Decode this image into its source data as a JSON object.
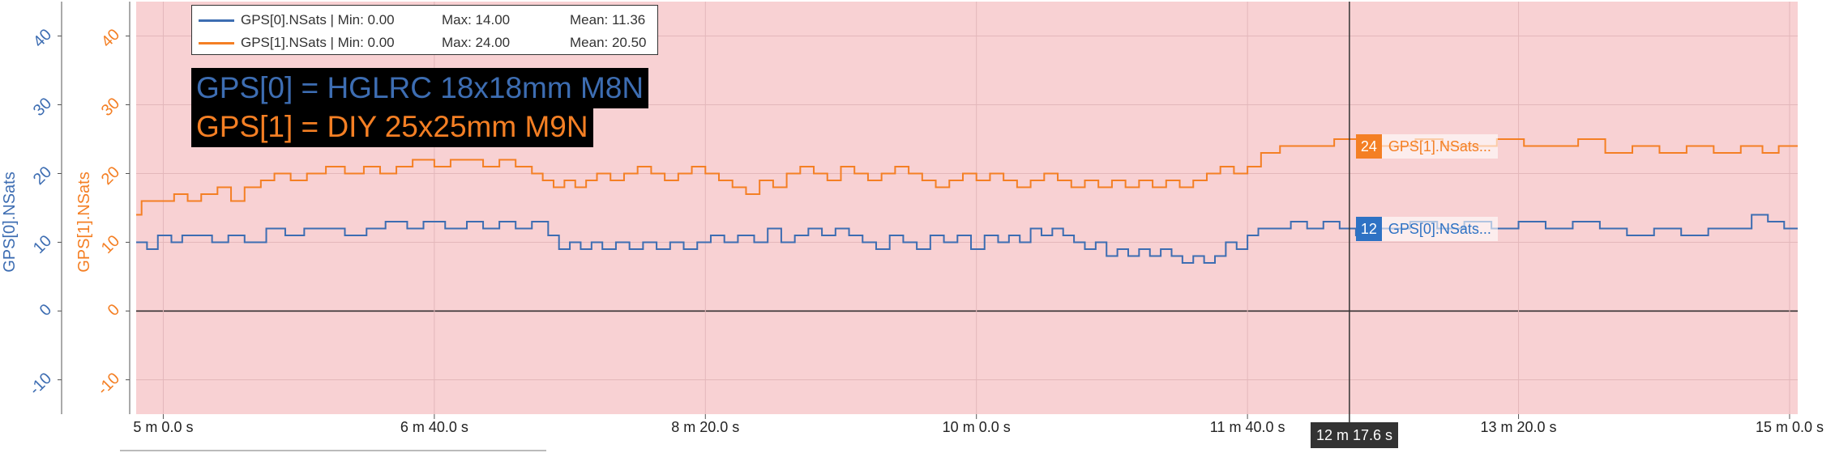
{
  "chart_data": {
    "type": "line",
    "background_color": "#f8d1d3",
    "x_axis": {
      "unit": "seconds",
      "range": [
        290,
        903
      ],
      "ticks": [
        {
          "value": 300,
          "label": "5 m 0.0 s"
        },
        {
          "value": 400,
          "label": "6 m 40.0 s"
        },
        {
          "value": 500,
          "label": "8 m 20.0 s"
        },
        {
          "value": 600,
          "label": "10 m 0.0 s"
        },
        {
          "value": 700,
          "label": "11 m 40.0 s"
        },
        {
          "value": 800,
          "label": "13 m 20.0 s"
        },
        {
          "value": 900,
          "label": "15 m 0.0 s"
        }
      ]
    },
    "y_axes": [
      {
        "label": "GPS[0].NSats",
        "color": "#3d6db2",
        "range": [
          -15,
          45
        ],
        "ticks": [
          "-10",
          "0",
          "10",
          "20",
          "30",
          "40"
        ]
      },
      {
        "label": "GPS[1].NSats",
        "color": "#f47f24",
        "range": [
          -15,
          45
        ],
        "ticks": [
          "-10",
          "0",
          "10",
          "20",
          "30",
          "40"
        ]
      }
    ],
    "series": [
      {
        "name": "GPS[0].NSats",
        "color": "#3d6db2",
        "legend_text": "GPS[0].NSats | Min: 0.00",
        "max_text": "Max: 14.00",
        "mean_text": "Mean: 11.36",
        "points": [
          [
            290,
            10
          ],
          [
            294,
            9
          ],
          [
            298,
            11
          ],
          [
            303,
            10
          ],
          [
            307,
            11
          ],
          [
            313,
            11
          ],
          [
            318,
            10
          ],
          [
            324,
            11
          ],
          [
            330,
            10
          ],
          [
            338,
            12
          ],
          [
            345,
            11
          ],
          [
            352,
            12
          ],
          [
            360,
            12
          ],
          [
            367,
            11
          ],
          [
            375,
            12
          ],
          [
            382,
            13
          ],
          [
            390,
            12
          ],
          [
            396,
            13
          ],
          [
            404,
            12
          ],
          [
            412,
            13
          ],
          [
            418,
            12
          ],
          [
            424,
            13
          ],
          [
            430,
            12
          ],
          [
            436,
            13
          ],
          [
            442,
            11
          ],
          [
            446,
            9
          ],
          [
            450,
            10
          ],
          [
            454,
            9
          ],
          [
            458,
            10
          ],
          [
            462,
            9
          ],
          [
            467,
            10
          ],
          [
            472,
            9
          ],
          [
            477,
            10
          ],
          [
            482,
            9
          ],
          [
            487,
            10
          ],
          [
            492,
            9
          ],
          [
            497,
            10
          ],
          [
            502,
            11
          ],
          [
            507,
            10
          ],
          [
            512,
            11
          ],
          [
            518,
            10
          ],
          [
            523,
            12
          ],
          [
            528,
            10
          ],
          [
            533,
            11
          ],
          [
            538,
            12
          ],
          [
            543,
            11
          ],
          [
            548,
            12
          ],
          [
            553,
            11
          ],
          [
            558,
            10
          ],
          [
            563,
            9
          ],
          [
            568,
            11
          ],
          [
            573,
            10
          ],
          [
            578,
            9
          ],
          [
            583,
            11
          ],
          [
            588,
            10
          ],
          [
            593,
            11
          ],
          [
            598,
            9
          ],
          [
            603,
            11
          ],
          [
            608,
            10
          ],
          [
            612,
            11
          ],
          [
            616,
            10
          ],
          [
            620,
            12
          ],
          [
            624,
            11
          ],
          [
            628,
            12
          ],
          [
            632,
            11
          ],
          [
            636,
            10
          ],
          [
            640,
            9
          ],
          [
            644,
            10
          ],
          [
            648,
            8
          ],
          [
            652,
            9
          ],
          [
            656,
            8
          ],
          [
            660,
            9
          ],
          [
            664,
            8
          ],
          [
            668,
            9
          ],
          [
            672,
            8
          ],
          [
            676,
            7
          ],
          [
            680,
            8
          ],
          [
            684,
            7
          ],
          [
            688,
            8
          ],
          [
            692,
            10
          ],
          [
            696,
            9
          ],
          [
            700,
            11
          ],
          [
            704,
            12
          ],
          [
            710,
            12
          ],
          [
            716,
            13
          ],
          [
            722,
            12
          ],
          [
            728,
            13
          ],
          [
            734,
            12
          ],
          [
            740,
            11
          ],
          [
            745,
            12
          ],
          [
            752,
            12
          ],
          [
            760,
            13
          ],
          [
            770,
            12
          ],
          [
            780,
            13
          ],
          [
            790,
            12
          ],
          [
            800,
            13
          ],
          [
            810,
            12
          ],
          [
            820,
            13
          ],
          [
            830,
            12
          ],
          [
            840,
            11
          ],
          [
            850,
            12
          ],
          [
            860,
            11
          ],
          [
            870,
            12
          ],
          [
            880,
            12
          ],
          [
            886,
            14
          ],
          [
            892,
            13
          ],
          [
            898,
            12
          ],
          [
            903,
            12
          ]
        ]
      },
      {
        "name": "GPS[1].NSats",
        "color": "#f47f24",
        "legend_text": "GPS[1].NSats | Min: 0.00",
        "max_text": "Max: 24.00",
        "mean_text": "Mean: 20.50",
        "points": [
          [
            290,
            14
          ],
          [
            292,
            16
          ],
          [
            298,
            16
          ],
          [
            304,
            17
          ],
          [
            309,
            16
          ],
          [
            314,
            17
          ],
          [
            320,
            18
          ],
          [
            325,
            16
          ],
          [
            330,
            18
          ],
          [
            336,
            19
          ],
          [
            341,
            20
          ],
          [
            347,
            19
          ],
          [
            353,
            20
          ],
          [
            360,
            21
          ],
          [
            367,
            20
          ],
          [
            374,
            21
          ],
          [
            380,
            20
          ],
          [
            386,
            21
          ],
          [
            392,
            22
          ],
          [
            400,
            21
          ],
          [
            406,
            22
          ],
          [
            412,
            22
          ],
          [
            418,
            21
          ],
          [
            424,
            22
          ],
          [
            430,
            21
          ],
          [
            436,
            20
          ],
          [
            440,
            19
          ],
          [
            444,
            18
          ],
          [
            448,
            19
          ],
          [
            452,
            18
          ],
          [
            456,
            19
          ],
          [
            460,
            20
          ],
          [
            465,
            19
          ],
          [
            470,
            20
          ],
          [
            475,
            21
          ],
          [
            480,
            20
          ],
          [
            485,
            19
          ],
          [
            490,
            20
          ],
          [
            495,
            21
          ],
          [
            500,
            20
          ],
          [
            505,
            19
          ],
          [
            510,
            18
          ],
          [
            515,
            17
          ],
          [
            520,
            19
          ],
          [
            525,
            18
          ],
          [
            530,
            20
          ],
          [
            535,
            21
          ],
          [
            540,
            20
          ],
          [
            545,
            19
          ],
          [
            550,
            21
          ],
          [
            555,
            20
          ],
          [
            560,
            19
          ],
          [
            565,
            20
          ],
          [
            570,
            21
          ],
          [
            575,
            20
          ],
          [
            580,
            19
          ],
          [
            585,
            18
          ],
          [
            590,
            19
          ],
          [
            595,
            20
          ],
          [
            600,
            19
          ],
          [
            605,
            20
          ],
          [
            610,
            19
          ],
          [
            615,
            18
          ],
          [
            620,
            19
          ],
          [
            625,
            20
          ],
          [
            630,
            19
          ],
          [
            635,
            18
          ],
          [
            640,
            19
          ],
          [
            645,
            18
          ],
          [
            650,
            19
          ],
          [
            655,
            18
          ],
          [
            660,
            19
          ],
          [
            665,
            18
          ],
          [
            670,
            19
          ],
          [
            675,
            18
          ],
          [
            680,
            19
          ],
          [
            685,
            20
          ],
          [
            690,
            21
          ],
          [
            695,
            20
          ],
          [
            700,
            21
          ],
          [
            705,
            23
          ],
          [
            712,
            24
          ],
          [
            722,
            24
          ],
          [
            732,
            25
          ],
          [
            742,
            24
          ],
          [
            752,
            24
          ],
          [
            762,
            25
          ],
          [
            772,
            24
          ],
          [
            782,
            24
          ],
          [
            792,
            25
          ],
          [
            802,
            24
          ],
          [
            812,
            24
          ],
          [
            822,
            25
          ],
          [
            832,
            23
          ],
          [
            842,
            24
          ],
          [
            852,
            23
          ],
          [
            862,
            24
          ],
          [
            872,
            23
          ],
          [
            882,
            24
          ],
          [
            890,
            23
          ],
          [
            896,
            24
          ],
          [
            903,
            24
          ]
        ]
      }
    ],
    "annotations": [
      {
        "text": "GPS[0] = HGLRC 18x18mm M8N",
        "color": "#3d6db2"
      },
      {
        "text": "GPS[1] = DIY 25x25mm M9N",
        "color": "#f47f24"
      }
    ],
    "cursor": {
      "x": 737.6,
      "label": "12 m 17.6 s",
      "hover": [
        {
          "series": "GPS[1].NSats...",
          "value": "24",
          "y": 24,
          "color": "#f47f24"
        },
        {
          "series": "GPS[0].NSats...",
          "value": "12",
          "y": 12,
          "color": "#2e72c4"
        }
      ]
    }
  }
}
